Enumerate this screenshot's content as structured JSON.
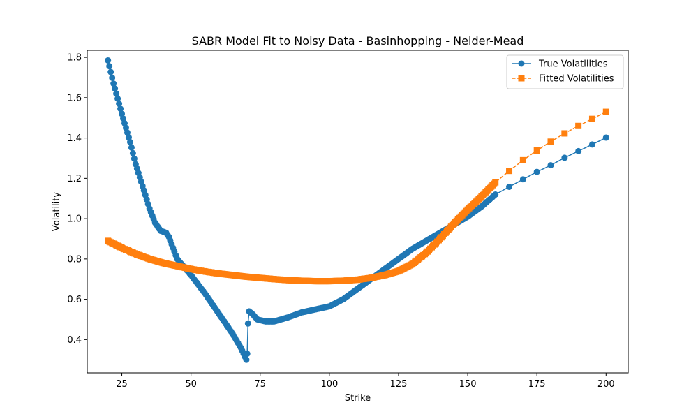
{
  "chart_data": {
    "type": "line",
    "title": "SABR Model Fit to Noisy Data - Basinhopping - Nelder-Mead",
    "xlabel": "Strike",
    "ylabel": "Volatility",
    "xlim": [
      12.5,
      208
    ],
    "ylim": [
      0.235,
      1.835
    ],
    "xticks": [
      25,
      50,
      75,
      100,
      125,
      150,
      175,
      200
    ],
    "yticks": [
      0.4,
      0.6,
      0.8,
      1.0,
      1.2,
      1.4,
      1.6,
      1.8
    ],
    "ytick_labels": [
      "0.4",
      "0.6",
      "0.8",
      "1.0",
      "1.2",
      "1.4",
      "1.6",
      "1.8"
    ],
    "grid": false,
    "legend_position": "top-right",
    "series": [
      {
        "name": "True Volatilities",
        "color": "#1f77b4",
        "marker": "circle",
        "linestyle": "solid",
        "knots": [
          [
            20,
            1.785
          ],
          [
            22,
            1.67
          ],
          [
            25,
            1.52
          ],
          [
            28,
            1.38
          ],
          [
            30,
            1.27
          ],
          [
            33,
            1.14
          ],
          [
            35,
            1.05
          ],
          [
            37,
            0.98
          ],
          [
            39,
            0.94
          ],
          [
            41,
            0.93
          ],
          [
            42,
            0.91
          ],
          [
            45,
            0.8
          ],
          [
            50,
            0.72
          ],
          [
            55,
            0.63
          ],
          [
            60,
            0.53
          ],
          [
            65,
            0.43
          ],
          [
            68,
            0.36
          ],
          [
            70,
            0.3
          ],
          [
            70.3,
            0.33
          ],
          [
            70.6,
            0.48
          ],
          [
            71,
            0.54
          ],
          [
            72,
            0.53
          ],
          [
            74,
            0.5
          ],
          [
            77,
            0.49
          ],
          [
            80,
            0.49
          ],
          [
            85,
            0.51
          ],
          [
            90,
            0.535
          ],
          [
            95,
            0.55
          ],
          [
            100,
            0.565
          ],
          [
            105,
            0.6
          ],
          [
            110,
            0.65
          ],
          [
            115,
            0.7
          ],
          [
            120,
            0.75
          ],
          [
            125,
            0.8
          ],
          [
            130,
            0.85
          ],
          [
            135,
            0.89
          ],
          [
            140,
            0.93
          ],
          [
            145,
            0.97
          ],
          [
            150,
            1.01
          ],
          [
            155,
            1.06
          ],
          [
            160,
            1.12
          ]
        ],
        "dense_step": 0.5,
        "tail_points": [
          [
            165,
            1.158
          ],
          [
            170,
            1.195
          ],
          [
            175,
            1.232
          ],
          [
            180,
            1.265
          ],
          [
            185,
            1.302
          ],
          [
            190,
            1.335
          ],
          [
            195,
            1.368
          ],
          [
            200,
            1.402
          ]
        ]
      },
      {
        "name": "Fitted Volatilities",
        "color": "#ff7f0e",
        "marker": "square",
        "linestyle": "dashed",
        "knots": [
          [
            20,
            0.89
          ],
          [
            25,
            0.855
          ],
          [
            30,
            0.825
          ],
          [
            35,
            0.8
          ],
          [
            40,
            0.78
          ],
          [
            45,
            0.765
          ],
          [
            50,
            0.75
          ],
          [
            55,
            0.738
          ],
          [
            60,
            0.728
          ],
          [
            65,
            0.72
          ],
          [
            70,
            0.712
          ],
          [
            75,
            0.706
          ],
          [
            80,
            0.7
          ],
          [
            85,
            0.695
          ],
          [
            90,
            0.692
          ],
          [
            95,
            0.69
          ],
          [
            100,
            0.69
          ],
          [
            105,
            0.692
          ],
          [
            110,
            0.697
          ],
          [
            115,
            0.706
          ],
          [
            120,
            0.72
          ],
          [
            125,
            0.74
          ],
          [
            130,
            0.775
          ],
          [
            135,
            0.83
          ],
          [
            140,
            0.9
          ],
          [
            145,
            0.975
          ],
          [
            150,
            1.045
          ],
          [
            155,
            1.11
          ],
          [
            160,
            1.18
          ]
        ],
        "dense_step": 0.5,
        "tail_points": [
          [
            165,
            1.237
          ],
          [
            170,
            1.29
          ],
          [
            175,
            1.338
          ],
          [
            180,
            1.382
          ],
          [
            185,
            1.423
          ],
          [
            190,
            1.46
          ],
          [
            195,
            1.495
          ],
          [
            200,
            1.53
          ]
        ]
      }
    ]
  }
}
